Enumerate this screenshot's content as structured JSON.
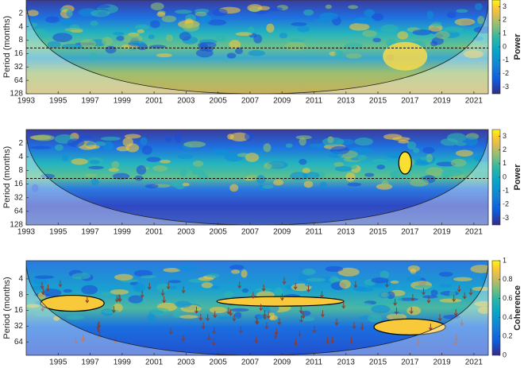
{
  "chart_data": [
    {
      "type": "wavelet",
      "ylabel": "Period (months)",
      "colorbar_label": "Power",
      "xlim": [
        1993,
        2021.9
      ],
      "xticks": [
        1993,
        1995,
        1997,
        1999,
        2001,
        2003,
        2005,
        2007,
        2009,
        2011,
        2013,
        2015,
        2017,
        2019,
        2021
      ],
      "ylim": [
        1,
        128
      ],
      "yticks": [
        2,
        4,
        8,
        16,
        32,
        64,
        128
      ],
      "log_scale": true,
      "clim": [
        -3.5,
        3.5
      ],
      "cticks": [
        -3,
        -2,
        -1,
        0,
        1,
        2,
        3
      ],
      "dashed_period": 12
    },
    {
      "type": "wavelet",
      "ylabel": "Period (months)",
      "colorbar_label": "Power",
      "xlim": [
        1993,
        2021.9
      ],
      "xticks": [
        1993,
        1995,
        1997,
        1999,
        2001,
        2003,
        2005,
        2007,
        2009,
        2011,
        2013,
        2015,
        2017,
        2019,
        2021
      ],
      "ylim": [
        1,
        128
      ],
      "yticks": [
        2,
        4,
        8,
        16,
        32,
        64,
        128
      ],
      "log_scale": true,
      "clim": [
        -3.5,
        3.5
      ],
      "cticks": [
        -3,
        -2,
        -1,
        0,
        1,
        2,
        3
      ],
      "dashed_period": 12
    },
    {
      "type": "wavelet",
      "ylabel": "Period (months)",
      "colorbar_label": "Coherence",
      "xlim": [
        1993,
        2021.9
      ],
      "xticks": [
        1995,
        1997,
        1999,
        2001,
        2003,
        2005,
        2007,
        2009,
        2011,
        2013,
        2015,
        2017,
        2019,
        2021
      ],
      "ylim": [
        1.8,
        115
      ],
      "yticks": [
        4,
        8,
        16,
        32,
        64
      ],
      "log_scale": true,
      "clim": [
        0,
        1
      ],
      "cticks": [
        0,
        0.2,
        0.4,
        0.6,
        0.8,
        1
      ]
    }
  ]
}
